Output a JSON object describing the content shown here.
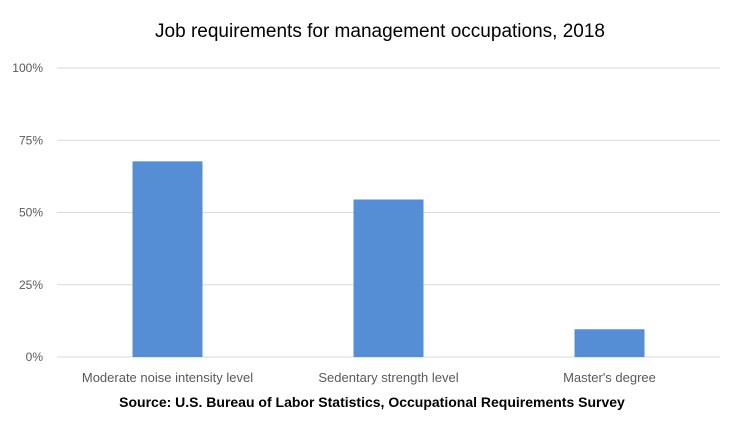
{
  "chart_data": {
    "type": "bar",
    "title": "Job requirements for management occupations, 2018",
    "categories": [
      "Moderate noise intensity level",
      "Sedentary strength level",
      "Master's degree"
    ],
    "values": [
      67.7,
      54.5,
      9.6
    ],
    "value_unit": "%",
    "ylim": [
      0,
      100
    ],
    "yticks": [
      "0%",
      "25%",
      "50%",
      "75%",
      "100%"
    ],
    "ytick_values": [
      0,
      25,
      50,
      75,
      100
    ],
    "xlabel": "",
    "ylabel": "",
    "grid": true,
    "legend": "none",
    "bar_color": "#558ED5",
    "gridline_color": "#D9D9D9",
    "source": "Source: U.S. Bureau of Labor Statistics, Occupational Requirements Survey"
  }
}
